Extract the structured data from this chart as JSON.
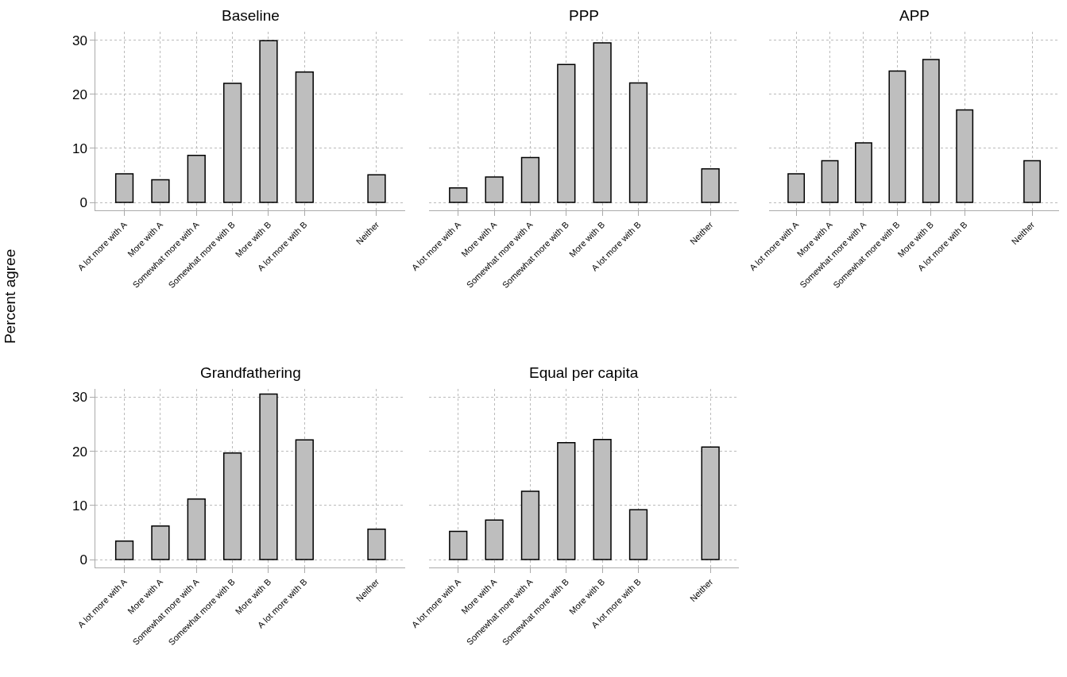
{
  "chart_data": [
    {
      "type": "bar",
      "title": "Baseline",
      "ylabel": "Percent agree",
      "categories": [
        "A lot more with A",
        "More with A",
        "Somewhat more with A",
        "Somewhat more with B",
        "More with B",
        "A lot more with B",
        null,
        "Neither"
      ],
      "values": [
        5.3,
        4.2,
        8.7,
        22.0,
        29.9,
        24.1,
        null,
        5.1
      ],
      "color": "#bebebe",
      "ylim": [
        -1.5,
        31.5
      ],
      "yticks": [
        0,
        10,
        20,
        30
      ],
      "grid": true
    },
    {
      "type": "bar",
      "title": "PPP",
      "categories": [
        "A lot more with A",
        "More with A",
        "Somewhat more with A",
        "Somewhat more with B",
        "More with B",
        "A lot more with B",
        null,
        "Neither"
      ],
      "values": [
        2.7,
        4.7,
        8.3,
        25.5,
        29.5,
        22.1,
        null,
        6.2
      ],
      "color": "#bebebe",
      "ylim": [
        -1.5,
        31.5
      ],
      "yticks": [
        0,
        10,
        20,
        30
      ],
      "grid": true,
      "tick_labels": "x"
    },
    {
      "type": "bar",
      "title": "APP",
      "categories": [
        "A lot more with A",
        "More with A",
        "Somewhat more with A",
        "Somewhat more with B",
        "More with B",
        "A lot more with B",
        null,
        "Neither"
      ],
      "values": [
        5.3,
        7.7,
        11.0,
        24.3,
        26.4,
        17.1,
        null,
        7.7
      ],
      "color": "#bebebe",
      "ylim": [
        -1.5,
        31.5
      ],
      "yticks": [
        0,
        10,
        20,
        30
      ],
      "grid": true,
      "tick_labels": "x"
    },
    {
      "type": "bar",
      "title": "Grandfathering",
      "categories": [
        "A lot more with A",
        "More with A",
        "Somewhat more with A",
        "Somewhat more with B",
        "More with B",
        "A lot more with B",
        null,
        "Neither"
      ],
      "values": [
        3.4,
        6.2,
        11.2,
        19.7,
        30.6,
        22.1,
        null,
        5.6
      ],
      "color": "#bebebe",
      "ylim": [
        -1.5,
        31.5
      ],
      "yticks": [
        0,
        10,
        20,
        30
      ],
      "grid": true
    },
    {
      "type": "bar",
      "title": "Equal per capita",
      "categories": [
        "A lot more with A",
        "More with A",
        "Somewhat more with A",
        "Somewhat more with B",
        "More with B",
        "A lot more with B",
        null,
        "Neither"
      ],
      "values": [
        5.2,
        7.3,
        12.6,
        21.6,
        22.2,
        9.2,
        null,
        20.8
      ],
      "color": "#bebebe",
      "ylim": [
        -1.5,
        31.5
      ],
      "yticks": [
        0,
        10,
        20,
        30
      ],
      "grid": true,
      "tick_labels": "x"
    }
  ]
}
